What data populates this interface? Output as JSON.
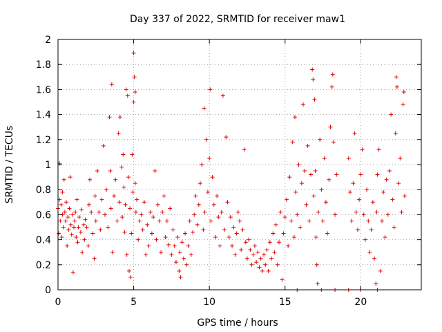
{
  "chart_data": {
    "type": "scatter",
    "title": "Day 337 of 2022, SRMTID for receiver maw1",
    "xlabel": "GPS time / hours",
    "ylabel": "SRMTID / TECUs",
    "xlim": [
      0,
      24
    ],
    "ylim": [
      0,
      2
    ],
    "xticks": [
      0,
      5,
      10,
      15,
      20
    ],
    "xtick_labels": [
      "0",
      "5",
      "10",
      "15",
      "20"
    ],
    "yticks": [
      0,
      0.2,
      0.4,
      0.6,
      0.8,
      1,
      1.2,
      1.4,
      1.6,
      1.8,
      2
    ],
    "ytick_labels": [
      "0",
      "0.2",
      "0.4",
      "0.6",
      "0.8",
      "1",
      "1.2",
      "1.4",
      "1.6",
      "1.8",
      "2"
    ],
    "grid": true,
    "marker": "plus",
    "series": [
      {
        "name": "maw1",
        "color": "#e00000",
        "points": [
          [
            0.0,
            0.65
          ],
          [
            0.05,
            0.45
          ],
          [
            0.1,
            0.72
          ],
          [
            0.1,
            1.01
          ],
          [
            0.15,
            0.55
          ],
          [
            0.2,
            0.68
          ],
          [
            0.25,
            0.42
          ],
          [
            0.3,
            0.78
          ],
          [
            0.3,
            0.6
          ],
          [
            0.35,
            0.5
          ],
          [
            0.4,
            0.88
          ],
          [
            0.45,
            0.62
          ],
          [
            0.5,
            0.55
          ],
          [
            0.55,
            0.7
          ],
          [
            0.6,
            0.35
          ],
          [
            0.65,
            0.58
          ],
          [
            0.7,
            0.48
          ],
          [
            0.75,
            0.65
          ],
          [
            0.8,
            0.9
          ],
          [
            0.85,
            0.52
          ],
          [
            0.9,
            0.44
          ],
          [
            0.95,
            0.6
          ],
          [
            1.0,
            0.14
          ],
          [
            1.05,
            0.5
          ],
          [
            1.1,
            0.55
          ],
          [
            1.15,
            0.62
          ],
          [
            1.2,
            0.42
          ],
          [
            1.25,
            0.72
          ],
          [
            1.3,
            0.38
          ],
          [
            1.35,
            0.5
          ],
          [
            1.4,
            0.58
          ],
          [
            1.5,
            0.46
          ],
          [
            1.55,
            0.64
          ],
          [
            1.6,
            0.3
          ],
          [
            1.7,
            0.52
          ],
          [
            1.75,
            0.4
          ],
          [
            1.8,
            0.56
          ],
          [
            1.9,
            0.5
          ],
          [
            2.0,
            0.35
          ],
          [
            2.05,
            0.68
          ],
          [
            2.1,
            0.88
          ],
          [
            2.2,
            0.62
          ],
          [
            2.3,
            0.45
          ],
          [
            2.4,
            0.25
          ],
          [
            2.45,
            0.75
          ],
          [
            2.5,
            0.55
          ],
          [
            2.6,
            0.95
          ],
          [
            2.7,
            0.62
          ],
          [
            2.8,
            0.48
          ],
          [
            2.9,
            0.72
          ],
          [
            3.0,
            1.15
          ],
          [
            3.1,
            0.6
          ],
          [
            3.2,
            0.8
          ],
          [
            3.3,
            0.5
          ],
          [
            3.4,
            1.38
          ],
          [
            3.45,
            0.95
          ],
          [
            3.5,
            0.65
          ],
          [
            3.55,
            1.64
          ],
          [
            3.6,
            0.3
          ],
          [
            3.7,
            0.75
          ],
          [
            3.8,
            0.88
          ],
          [
            3.9,
            0.55
          ],
          [
            4.0,
            1.25
          ],
          [
            4.05,
            0.7
          ],
          [
            4.1,
            1.38
          ],
          [
            4.2,
            0.98
          ],
          [
            4.25,
            0.58
          ],
          [
            4.3,
            1.08
          ],
          [
            4.35,
            0.82
          ],
          [
            4.4,
            0.46
          ],
          [
            4.45,
            0.68
          ],
          [
            4.5,
            1.6
          ],
          [
            4.55,
            0.28
          ],
          [
            4.6,
            1.55
          ],
          [
            4.65,
            0.9
          ],
          [
            4.7,
            0.15
          ],
          [
            4.75,
            0.65
          ],
          [
            4.8,
            0.1
          ],
          [
            4.85,
            0.45
          ],
          [
            4.9,
            1.08
          ],
          [
            4.95,
            0.78
          ],
          [
            5.0,
            1.5
          ],
          [
            5.0,
            1.89
          ],
          [
            5.05,
            1.7
          ],
          [
            5.1,
            1.58
          ],
          [
            5.1,
            0.85
          ],
          [
            5.15,
            0.62
          ],
          [
            5.2,
            0.72
          ],
          [
            5.3,
            0.4
          ],
          [
            5.4,
            0.55
          ],
          [
            5.5,
            0.6
          ],
          [
            5.6,
            0.48
          ],
          [
            5.7,
            0.7
          ],
          [
            5.8,
            0.28
          ],
          [
            5.9,
            0.52
          ],
          [
            6.0,
            0.35
          ],
          [
            6.1,
            0.62
          ],
          [
            6.2,
            0.45
          ],
          [
            6.3,
            0.58
          ],
          [
            6.4,
            0.95
          ],
          [
            6.5,
            0.4
          ],
          [
            6.6,
            0.68
          ],
          [
            6.7,
            0.55
          ],
          [
            6.8,
            0.3
          ],
          [
            6.9,
            0.62
          ],
          [
            7.0,
            0.75
          ],
          [
            7.1,
            0.42
          ],
          [
            7.2,
            0.55
          ],
          [
            7.3,
            0.36
          ],
          [
            7.4,
            0.65
          ],
          [
            7.5,
            0.28
          ],
          [
            7.6,
            0.48
          ],
          [
            7.7,
            0.35
          ],
          [
            7.8,
            0.22
          ],
          [
            7.9,
            0.42
          ],
          [
            8.0,
            0.15
          ],
          [
            8.05,
            0.3
          ],
          [
            8.1,
            0.1
          ],
          [
            8.2,
            0.38
          ],
          [
            8.3,
            0.25
          ],
          [
            8.4,
            0.45
          ],
          [
            8.5,
            0.2
          ],
          [
            8.6,
            0.35
          ],
          [
            8.7,
            0.55
          ],
          [
            8.8,
            0.28
          ],
          [
            8.9,
            0.46
          ],
          [
            9.0,
            0.6
          ],
          [
            9.1,
            0.75
          ],
          [
            9.2,
            0.52
          ],
          [
            9.3,
            0.68
          ],
          [
            9.4,
            0.85
          ],
          [
            9.5,
            1.0
          ],
          [
            9.6,
            0.48
          ],
          [
            9.65,
            1.45
          ],
          [
            9.7,
            0.62
          ],
          [
            9.8,
            1.2
          ],
          [
            9.9,
            0.78
          ],
          [
            10.0,
            1.05
          ],
          [
            10.05,
            1.6
          ],
          [
            10.1,
            0.55
          ],
          [
            10.2,
            0.9
          ],
          [
            10.3,
            0.68
          ],
          [
            10.4,
            0.42
          ],
          [
            10.5,
            0.75
          ],
          [
            10.6,
            0.58
          ],
          [
            10.7,
            0.35
          ],
          [
            10.8,
            0.62
          ],
          [
            10.9,
            1.55
          ],
          [
            11.0,
            0.48
          ],
          [
            11.1,
            1.22
          ],
          [
            11.2,
            0.7
          ],
          [
            11.3,
            0.42
          ],
          [
            11.4,
            0.58
          ],
          [
            11.5,
            0.35
          ],
          [
            11.6,
            0.5
          ],
          [
            11.7,
            0.28
          ],
          [
            11.8,
            0.45
          ],
          [
            11.9,
            0.62
          ],
          [
            12.0,
            0.55
          ],
          [
            12.1,
            0.32
          ],
          [
            12.2,
            0.48
          ],
          [
            12.3,
            1.12
          ],
          [
            12.4,
            0.38
          ],
          [
            12.5,
            0.25
          ],
          [
            12.6,
            0.4
          ],
          [
            12.7,
            0.32
          ],
          [
            12.8,
            0.2
          ],
          [
            12.9,
            0.28
          ],
          [
            13.0,
            0.35
          ],
          [
            13.1,
            0.22
          ],
          [
            13.2,
            0.3
          ],
          [
            13.3,
            0.18
          ],
          [
            13.4,
            0.25
          ],
          [
            13.5,
            0.15
          ],
          [
            13.6,
            0.28
          ],
          [
            13.7,
            0.2
          ],
          [
            13.8,
            0.32
          ],
          [
            13.9,
            0.15
          ],
          [
            14.0,
            0.38
          ],
          [
            14.1,
            0.25
          ],
          [
            14.2,
            0.45
          ],
          [
            14.3,
            0.3
          ],
          [
            14.4,
            0.52
          ],
          [
            14.5,
            0.2
          ],
          [
            14.6,
            0.38
          ],
          [
            14.7,
            0.62
          ],
          [
            14.8,
            0.08
          ],
          [
            14.9,
            0.45
          ],
          [
            15.0,
            0.58
          ],
          [
            15.1,
            0.72
          ],
          [
            15.2,
            0.35
          ],
          [
            15.3,
            0.9
          ],
          [
            15.4,
            0.55
          ],
          [
            15.5,
            1.18
          ],
          [
            15.6,
            0.42
          ],
          [
            15.65,
            1.38
          ],
          [
            15.7,
            0.78
          ],
          [
            15.8,
            0.6
          ],
          [
            15.9,
            1.0
          ],
          [
            16.0,
            0.5
          ],
          [
            16.1,
            0.85
          ],
          [
            16.2,
            1.48
          ],
          [
            16.3,
            0.95
          ],
          [
            16.4,
            0.68
          ],
          [
            16.5,
            1.15
          ],
          [
            16.6,
            0.55
          ],
          [
            16.7,
            0.92
          ],
          [
            16.8,
            1.76
          ],
          [
            16.85,
            1.68
          ],
          [
            16.9,
            0.75
          ],
          [
            16.95,
            1.52
          ],
          [
            17.0,
            0.95
          ],
          [
            17.05,
            0.42
          ],
          [
            17.1,
            0.2
          ],
          [
            17.15,
            0.05
          ],
          [
            17.2,
            0.62
          ],
          [
            17.3,
            1.2
          ],
          [
            17.4,
            0.8
          ],
          [
            17.5,
            0.55
          ],
          [
            17.6,
            1.05
          ],
          [
            17.7,
            0.7
          ],
          [
            17.8,
            0.45
          ],
          [
            17.9,
            0.88
          ],
          [
            18.0,
            1.3
          ],
          [
            18.1,
            1.62
          ],
          [
            18.15,
            1.72
          ],
          [
            18.2,
            1.18
          ],
          [
            18.3,
            0.6
          ],
          [
            18.4,
            0.92
          ],
          [
            19.2,
            1.05
          ],
          [
            19.3,
            0.78
          ],
          [
            19.4,
            0.55
          ],
          [
            19.5,
            0.85
          ],
          [
            19.6,
            1.25
          ],
          [
            19.7,
            0.62
          ],
          [
            19.8,
            0.48
          ],
          [
            19.9,
            0.72
          ],
          [
            20.0,
            0.92
          ],
          [
            20.1,
            1.12
          ],
          [
            20.2,
            0.6
          ],
          [
            20.3,
            0.4
          ],
          [
            20.4,
            0.8
          ],
          [
            20.5,
            0.55
          ],
          [
            20.6,
            0.3
          ],
          [
            20.7,
            0.48
          ],
          [
            20.8,
            0.7
          ],
          [
            20.9,
            0.25
          ],
          [
            21.0,
            0.05
          ],
          [
            21.05,
            0.62
          ],
          [
            21.1,
            0.92
          ],
          [
            21.2,
            1.12
          ],
          [
            21.3,
            0.15
          ],
          [
            21.4,
            0.55
          ],
          [
            21.5,
            0.78
          ],
          [
            21.6,
            0.42
          ],
          [
            21.7,
            0.88
          ],
          [
            21.8,
            0.6
          ],
          [
            21.9,
            0.95
          ],
          [
            22.0,
            1.4
          ],
          [
            22.1,
            0.72
          ],
          [
            22.2,
            0.5
          ],
          [
            22.3,
            1.25
          ],
          [
            22.35,
            1.7
          ],
          [
            22.4,
            1.62
          ],
          [
            22.5,
            0.85
          ],
          [
            22.6,
            1.05
          ],
          [
            22.7,
            0.62
          ],
          [
            22.8,
            1.48
          ],
          [
            22.85,
            1.58
          ],
          [
            22.9,
            0.75
          ],
          [
            15.8,
            0.0
          ],
          [
            17.4,
            0.0
          ],
          [
            18.3,
            0.0
          ],
          [
            19.2,
            0.0
          ],
          [
            20.0,
            0.0
          ],
          [
            21.1,
            0.0
          ]
        ]
      }
    ]
  }
}
